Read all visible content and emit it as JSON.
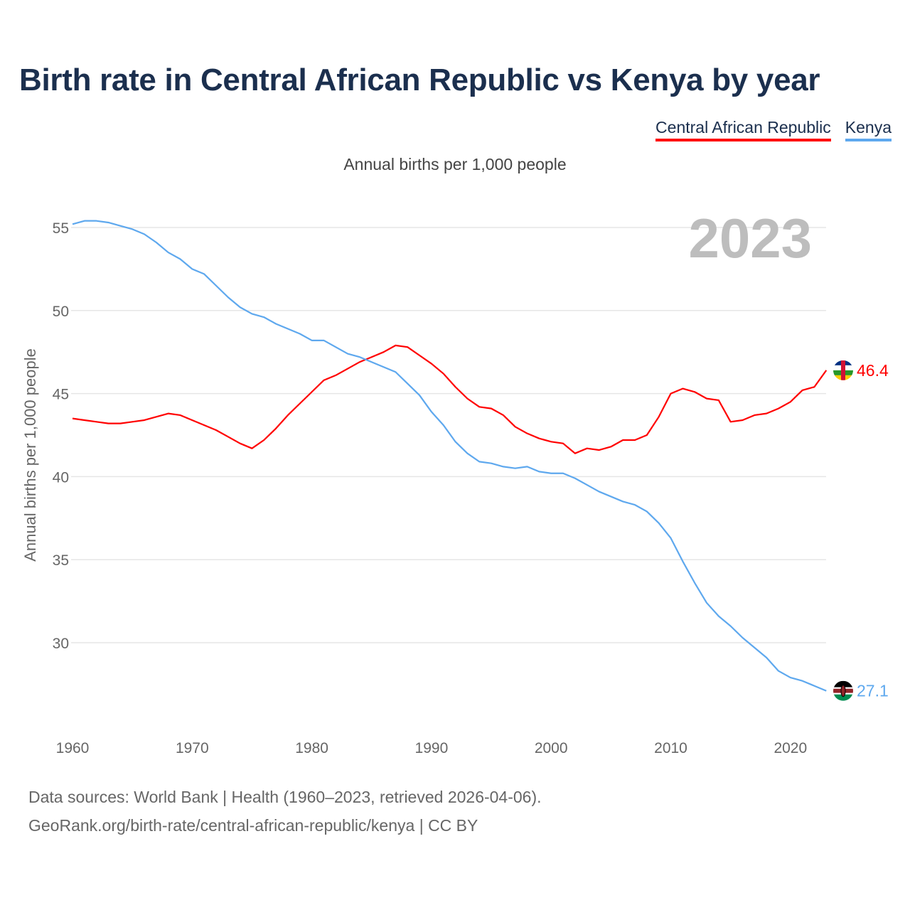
{
  "title": "Birth rate in Central African Republic vs Kenya by year",
  "subtitle": "Annual births per 1,000 people",
  "year_label": "2023",
  "footer": {
    "line1": "Data sources: World Bank | Health (1960–2023, retrieved 2026-04-06).",
    "line2": "GeoRank.org/birth-rate/central-african-republic/kenya | CC BY"
  },
  "chart_data": {
    "type": "line",
    "title": "Birth rate in Central African Republic vs Kenya by year",
    "xlabel": "",
    "ylabel": "Annual births per 1,000 people",
    "xlim": [
      1960,
      2023
    ],
    "ylim": [
      25.5,
      57
    ],
    "xticks": [
      1960,
      1970,
      1980,
      1990,
      2000,
      2010,
      2020
    ],
    "yticks": [
      30,
      35,
      40,
      45,
      50,
      55
    ],
    "grid": true,
    "legend": "top-right",
    "x_start": 1960,
    "series": [
      {
        "name": "Central African Republic",
        "color": "#ff0000",
        "end_label": "46.4",
        "values": [
          43.5,
          43.4,
          43.3,
          43.2,
          43.2,
          43.3,
          43.4,
          43.6,
          43.8,
          43.7,
          43.4,
          43.1,
          42.8,
          42.4,
          42.0,
          41.7,
          42.2,
          42.9,
          43.7,
          44.4,
          45.1,
          45.8,
          46.1,
          46.5,
          46.9,
          47.2,
          47.5,
          47.9,
          47.8,
          47.3,
          46.8,
          46.2,
          45.4,
          44.7,
          44.2,
          44.1,
          43.7,
          43.0,
          42.6,
          42.3,
          42.1,
          42.0,
          41.4,
          41.7,
          41.6,
          41.8,
          42.2,
          42.2,
          42.5,
          43.6,
          45.0,
          45.3,
          45.1,
          44.7,
          44.6,
          43.3,
          43.4,
          43.7,
          43.8,
          44.1,
          44.5,
          45.2,
          45.4,
          46.4
        ]
      },
      {
        "name": "Kenya",
        "color": "#5ea8ee",
        "end_label": "27.1",
        "values": [
          55.2,
          55.4,
          55.4,
          55.3,
          55.1,
          54.9,
          54.6,
          54.1,
          53.5,
          53.1,
          52.5,
          52.2,
          51.5,
          50.8,
          50.2,
          49.8,
          49.6,
          49.2,
          48.9,
          48.6,
          48.2,
          48.2,
          47.8,
          47.4,
          47.2,
          46.9,
          46.6,
          46.3,
          45.6,
          44.9,
          43.9,
          43.1,
          42.1,
          41.4,
          40.9,
          40.8,
          40.6,
          40.5,
          40.6,
          40.3,
          40.2,
          40.2,
          39.9,
          39.5,
          39.1,
          38.8,
          38.5,
          38.3,
          37.9,
          37.2,
          36.3,
          34.9,
          33.6,
          32.4,
          31.6,
          31.0,
          30.3,
          29.7,
          29.1,
          28.3,
          27.9,
          27.7,
          27.4,
          27.1
        ]
      }
    ]
  }
}
